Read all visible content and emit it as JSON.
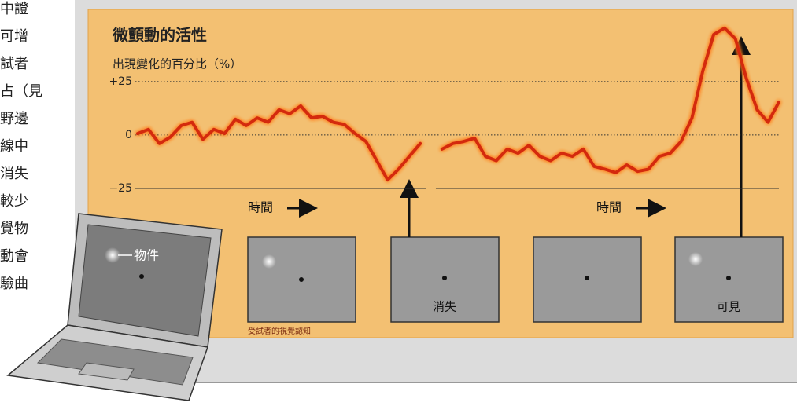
{
  "page": {
    "side_text": [
      "中證",
      "可增",
      "試者",
      "占（見",
      "野邊",
      "線中",
      "消失",
      "較少",
      "覺物",
      "動會",
      "驗曲"
    ]
  },
  "figure": {
    "object_label": "物件",
    "time_labels": [
      "時間",
      "時間"
    ],
    "panel_labels": [
      "消失",
      "可見"
    ],
    "perception_label": "受試者的視覺認知"
  },
  "chart_data": {
    "type": "line",
    "title": "微顫動的活性",
    "y_label": "出現變化的百分比（%）",
    "color": "#d42a10",
    "ylim": [
      -43,
      58
    ],
    "yticks": [
      {
        "value": 25,
        "label": "+25"
      },
      0,
      {
        "value": -25,
        "label": "−25"
      }
    ],
    "values": [
      0.7,
      2.6,
      -4,
      -1,
      4.4,
      6,
      -2,
      2.6,
      0.7,
      7.4,
      4.4,
      8,
      6,
      11.8,
      10,
      13.6,
      8,
      8.8,
      6,
      5,
      0.7,
      -3,
      -12,
      -21,
      -16,
      -10,
      -4,
      null,
      -6.6,
      -4,
      -3,
      -1.5,
      -10,
      -12,
      -6.6,
      -8.5,
      -4.8,
      -10,
      -12,
      -8.5,
      -10,
      -6.6,
      -14.7,
      -16,
      -17.6,
      -14,
      -17,
      -16,
      -10,
      -8.5,
      -3,
      8,
      30,
      47,
      50,
      45,
      26.5,
      11.8,
      6,
      15.4
    ]
  }
}
